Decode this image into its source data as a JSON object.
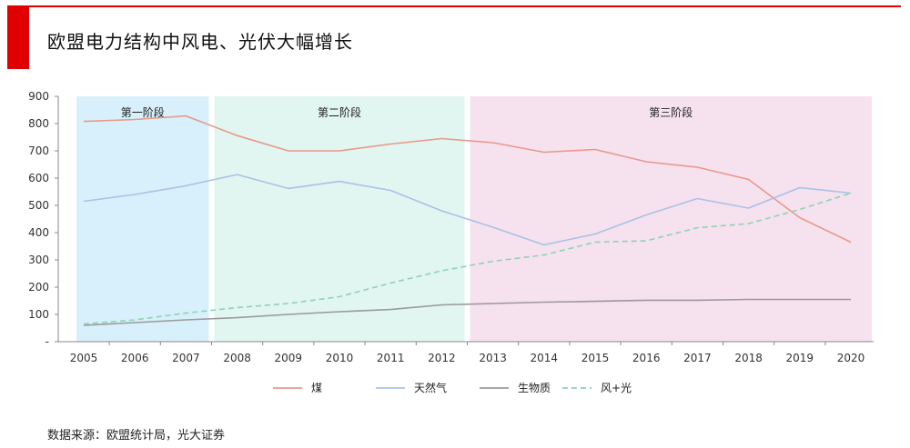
{
  "header": {
    "title": "欧盟电力结构中风电、光伏大幅增长",
    "accent_color": "#e00000"
  },
  "footer": {
    "source": "数据来源：欧盟统计局，光大证券"
  },
  "chart_data": {
    "type": "line",
    "title": "欧盟电力结构中风电、光伏大幅增长",
    "categories": [
      "2005",
      "2006",
      "2007",
      "2008",
      "2009",
      "2010",
      "2011",
      "2012",
      "2013",
      "2014",
      "2015",
      "2016",
      "2017",
      "2018",
      "2019",
      "2020"
    ],
    "yticks": [
      "-",
      "100",
      "200",
      "300",
      "400",
      "500",
      "600",
      "700",
      "800",
      "900"
    ],
    "ylim": [
      0,
      900
    ],
    "grid": false,
    "legend_position": "bottom",
    "series": [
      {
        "name": "煤",
        "color": "#e8998a",
        "dash": false,
        "values": [
          808,
          815,
          828,
          756,
          700,
          700,
          725,
          745,
          730,
          695,
          705,
          660,
          640,
          595,
          455,
          365
        ]
      },
      {
        "name": "天然气",
        "color": "#a9c2e6",
        "dash": false,
        "values": [
          515,
          540,
          572,
          613,
          562,
          588,
          555,
          480,
          420,
          355,
          395,
          465,
          525,
          490,
          565,
          545
        ]
      },
      {
        "name": "生物质",
        "color": "#9a9a9a",
        "dash": false,
        "values": [
          60,
          70,
          80,
          88,
          100,
          110,
          118,
          135,
          140,
          145,
          148,
          152,
          152,
          155,
          155,
          155
        ]
      },
      {
        "name": "风+光",
        "color": "#8fd3b1",
        "dash": true,
        "values": [
          65,
          80,
          105,
          125,
          140,
          165,
          215,
          260,
          295,
          318,
          365,
          370,
          418,
          433,
          485,
          545
        ]
      }
    ],
    "stages": [
      {
        "label": "第一阶段",
        "from": "2005",
        "to": "2007",
        "color": "#d7f0fb"
      },
      {
        "label": "第二阶段",
        "from": "2008",
        "to": "2012",
        "color": "#e1f5f1"
      },
      {
        "label": "第三阶段",
        "from": "2013",
        "to": "2020",
        "color": "#f6e1ef"
      }
    ]
  }
}
